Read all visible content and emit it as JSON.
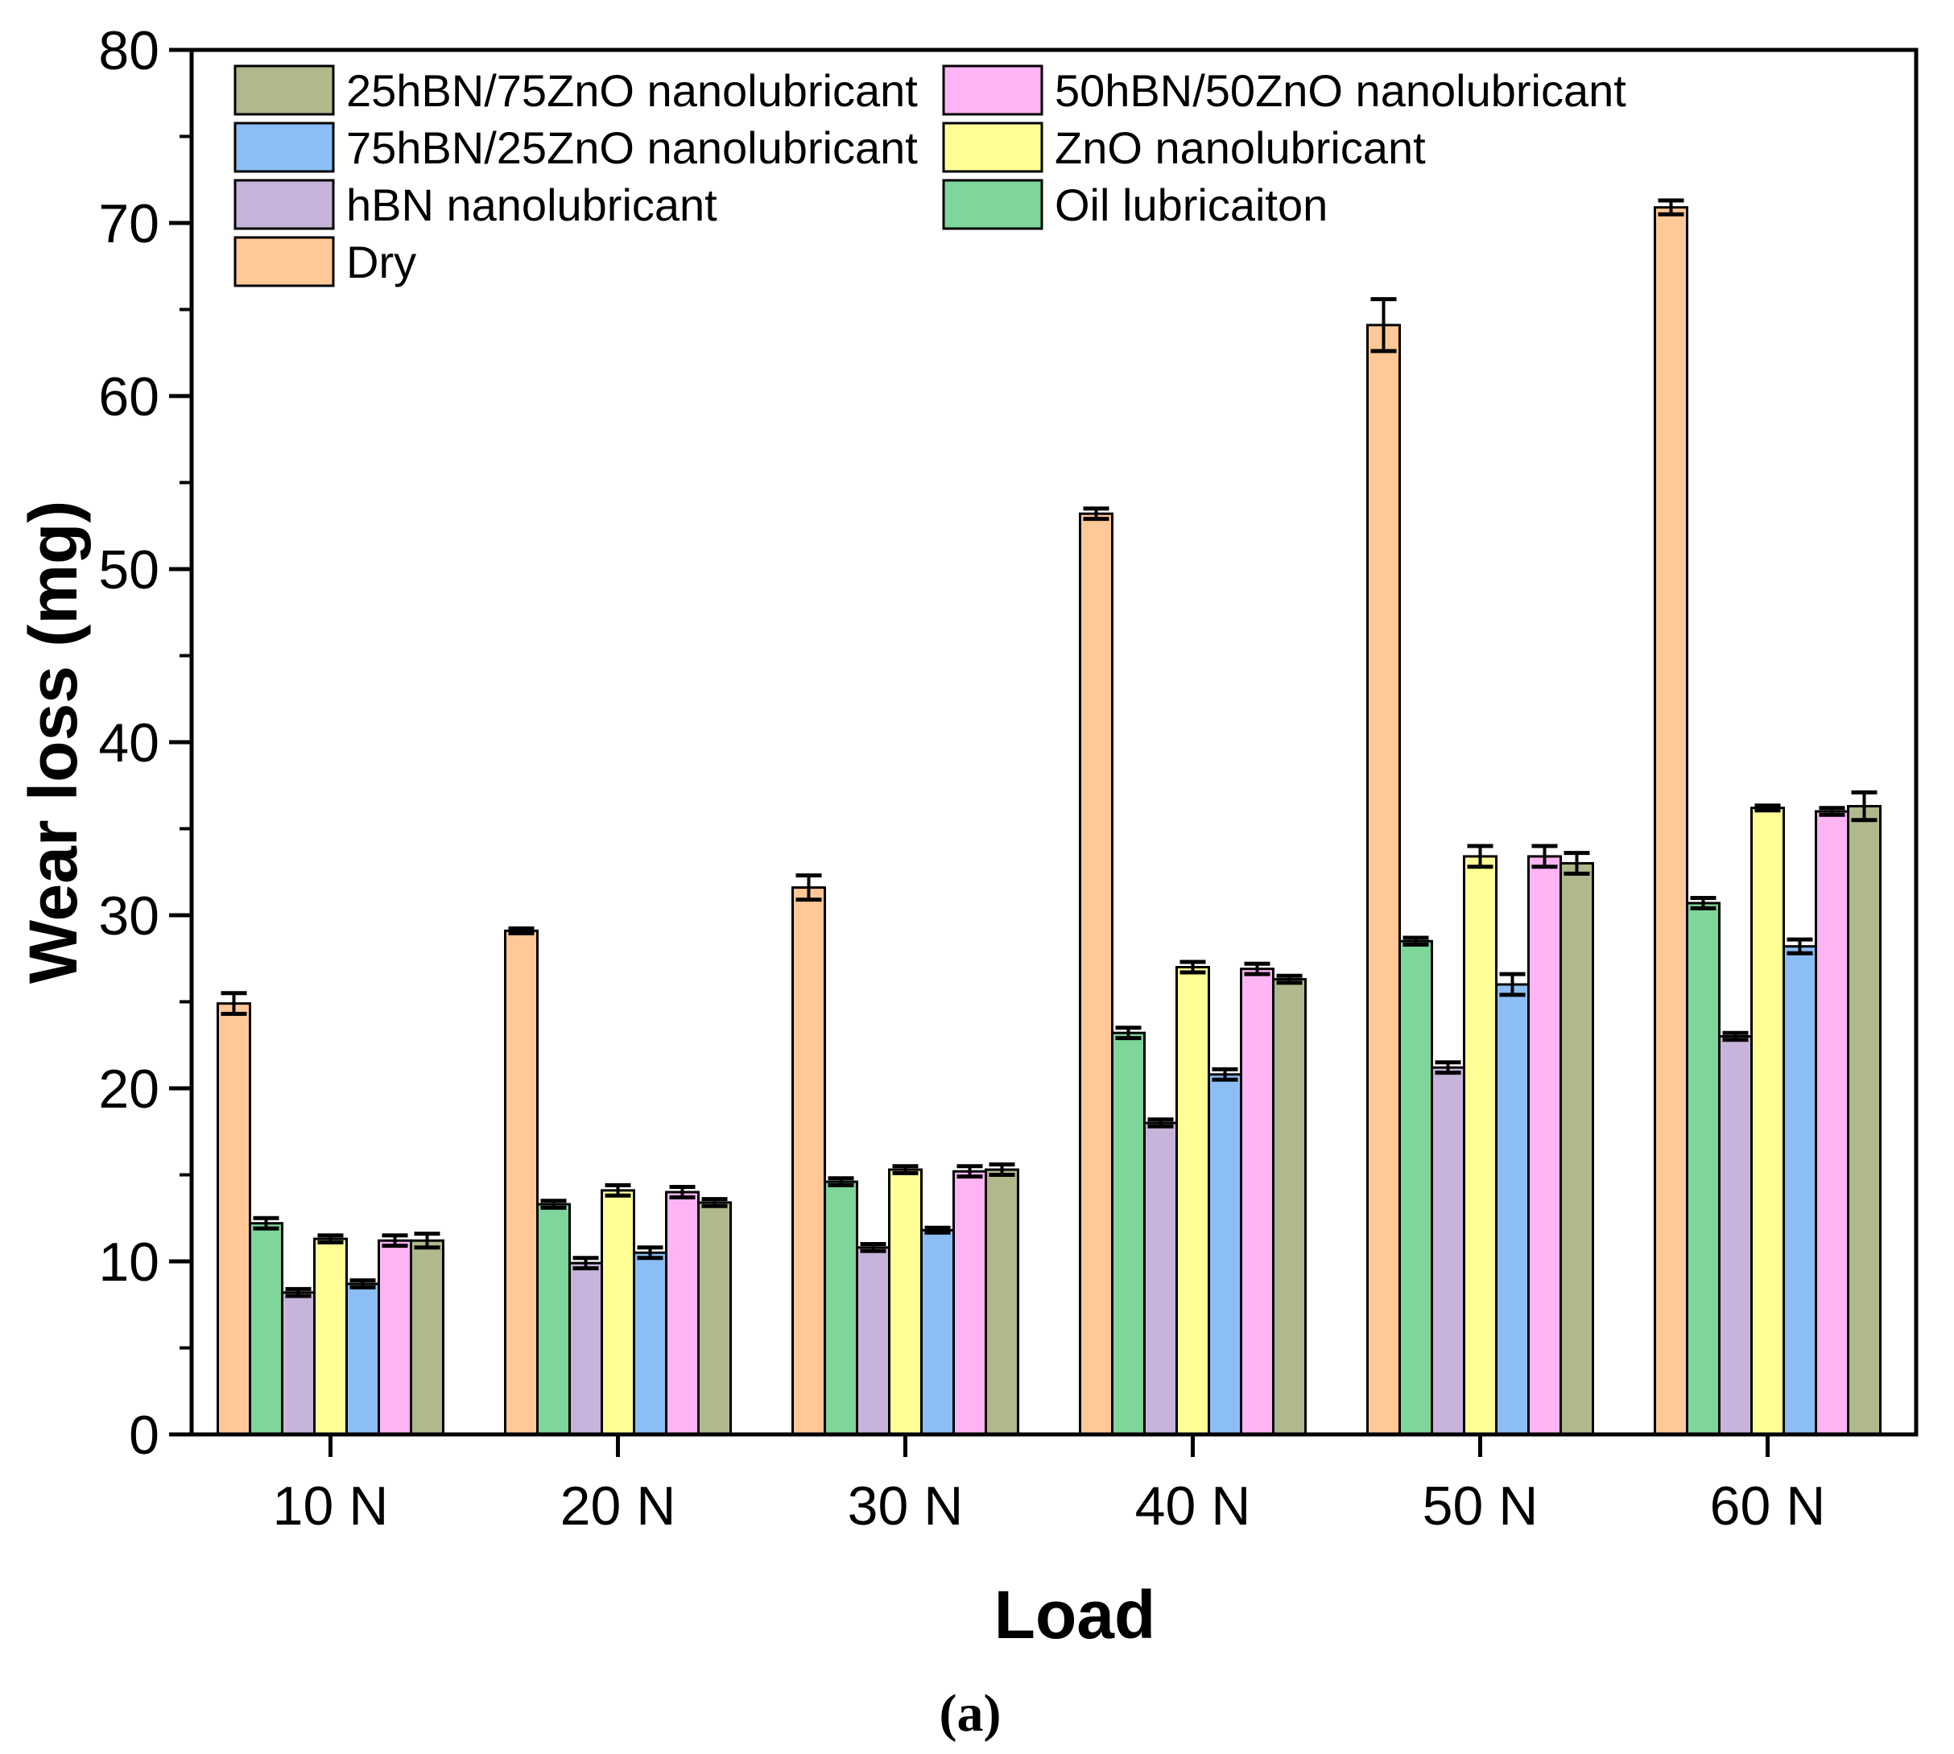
{
  "chart_data": {
    "type": "bar",
    "title": "",
    "xlabel": "Load",
    "ylabel": "Wear loss (mg)",
    "caption": "(a)",
    "ylim": [
      0,
      80
    ],
    "yticks": [
      0,
      10,
      20,
      30,
      40,
      50,
      60,
      70,
      80
    ],
    "categories": [
      "10 N",
      "20 N",
      "30 N",
      "40 N",
      "50 N",
      "60 N"
    ],
    "series": [
      {
        "name": "Dry",
        "color": "#FFC896",
        "values": [
          24.9,
          29.1,
          31.6,
          53.2,
          64.1,
          70.9
        ],
        "errors": [
          0.6,
          0.1,
          0.7,
          0.3,
          1.5,
          0.4
        ]
      },
      {
        "name": "Oil lubricaiton",
        "color": "#7FD69A",
        "values": [
          12.2,
          13.3,
          14.6,
          23.2,
          28.5,
          30.7
        ],
        "errors": [
          0.3,
          0.2,
          0.2,
          0.3,
          0.2,
          0.3
        ]
      },
      {
        "name": "hBN nanolubricant",
        "color": "#C8B4DA",
        "values": [
          8.2,
          9.9,
          10.8,
          18.0,
          21.2,
          23.0
        ],
        "errors": [
          0.2,
          0.3,
          0.2,
          0.2,
          0.3,
          0.2
        ]
      },
      {
        "name": "ZnO nanolubricant",
        "color": "#FFFF96",
        "values": [
          11.3,
          14.1,
          15.3,
          27.0,
          33.4,
          36.2
        ],
        "errors": [
          0.2,
          0.3,
          0.2,
          0.3,
          0.6,
          0.1
        ]
      },
      {
        "name": "75hBN/25ZnO nanolubricant",
        "color": "#8CBEF5",
        "values": [
          8.7,
          10.5,
          11.8,
          20.8,
          26.0,
          28.2
        ],
        "errors": [
          0.2,
          0.3,
          0.1,
          0.3,
          0.6,
          0.4
        ]
      },
      {
        "name": "50hBN/50ZnO nanolubricant",
        "color": "#FFB4F5",
        "values": [
          11.2,
          14.0,
          15.2,
          26.9,
          33.4,
          36.0
        ],
        "errors": [
          0.3,
          0.3,
          0.3,
          0.3,
          0.6,
          0.2
        ]
      },
      {
        "name": "25hBN/75ZnO nanolubricant",
        "color": "#B0B98C",
        "values": [
          11.2,
          13.4,
          15.3,
          26.3,
          33.0,
          36.3
        ],
        "errors": [
          0.4,
          0.2,
          0.3,
          0.2,
          0.6,
          0.8
        ]
      }
    ],
    "legend": {
      "placement": "top-left",
      "rows": [
        [
          "25hBN/75ZnO nanolubricant",
          "50hBN/50ZnO nanolubricant"
        ],
        [
          "75hBN/25ZnO nanolubricant",
          "ZnO nanolubricant"
        ],
        [
          "hBN nanolubricant",
          "Oil lubricaiton"
        ],
        [
          "Dry"
        ]
      ]
    }
  }
}
